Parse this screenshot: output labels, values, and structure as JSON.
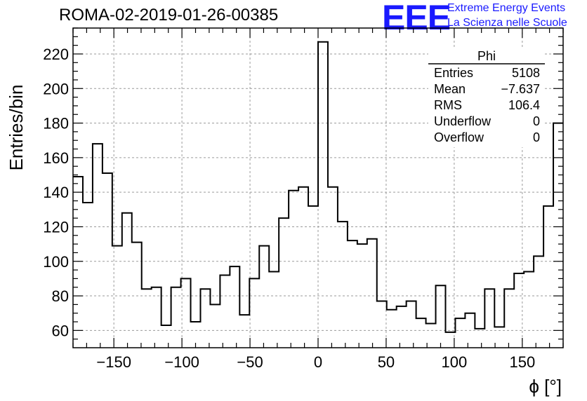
{
  "header": {
    "title": "ROMA-02-2019-01-26-00385",
    "logo_text": "EEE",
    "logo_line1": "Extreme Energy Events",
    "logo_line2": "La Scienza nelle Scuole",
    "logo_color": "#1a1aff"
  },
  "stats_box": {
    "name": "Phi",
    "rows": [
      {
        "label": "Entries",
        "value": "5108"
      },
      {
        "label": "Mean",
        "value": "−7.637"
      },
      {
        "label": "RMS",
        "value": "106.4"
      },
      {
        "label": "Underflow",
        "value": "0"
      },
      {
        "label": "Overflow",
        "value": "0"
      }
    ]
  },
  "chart_data": {
    "type": "bar",
    "histogram_style": "step",
    "xlabel": "ϕ [°]",
    "ylabel": "Entries/bin",
    "xlim": [
      -180,
      180
    ],
    "ylim": [
      50,
      235
    ],
    "bin_width": 7.2,
    "grid": true,
    "x_ticks": [
      -150,
      -100,
      -50,
      0,
      50,
      100,
      150
    ],
    "x_tick_labels": [
      "−150",
      "−100",
      "−50",
      "0",
      "50",
      "100",
      "150"
    ],
    "y_ticks": [
      60,
      80,
      100,
      120,
      140,
      160,
      180,
      200,
      220
    ],
    "y_tick_labels": [
      "60",
      "80",
      "100",
      "120",
      "140",
      "160",
      "180",
      "200",
      "220"
    ],
    "bin_edges_start": -180,
    "values": [
      149,
      134,
      168,
      151,
      109,
      128,
      111,
      84,
      85,
      63,
      85,
      90,
      65,
      84,
      75,
      92,
      97,
      69,
      90,
      109,
      94,
      125,
      141,
      143,
      132,
      227,
      143,
      123,
      112,
      110,
      113,
      77,
      72,
      74,
      77,
      67,
      64,
      86,
      59,
      67,
      70,
      61,
      84,
      62,
      84,
      93,
      94,
      103,
      132,
      180
    ]
  }
}
